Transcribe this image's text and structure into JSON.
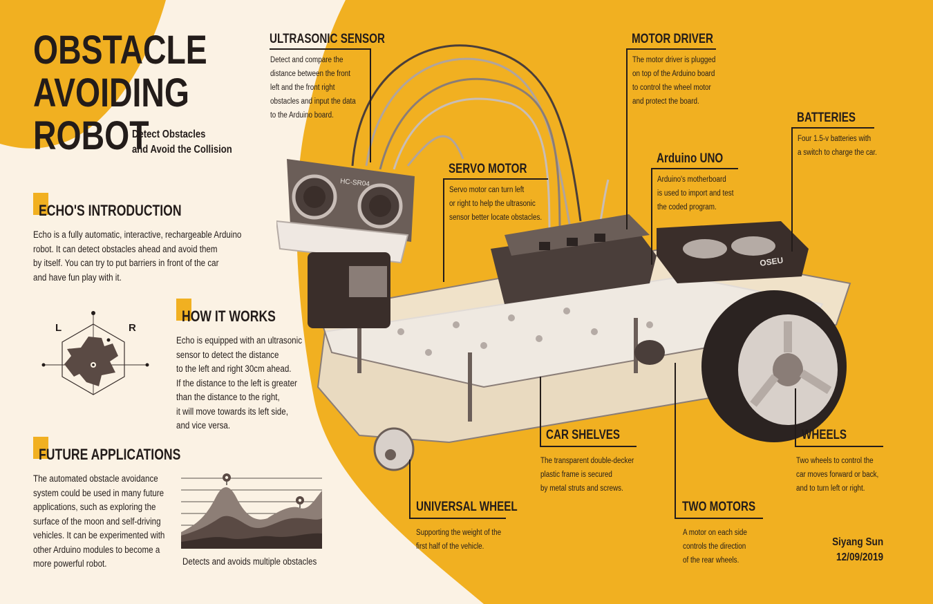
{
  "header": {
    "title_lines": [
      "OBSTACLE",
      "AVOIDING",
      "ROBOT"
    ],
    "subtitle_lines": [
      "Detect Obstacles",
      "and Avoid the Collision"
    ]
  },
  "intro": {
    "heading": "ECHO'S INTRODUCTION",
    "lines": [
      "Echo is a fully automatic, interactive, rechargeable Arduino",
      "robot. It can detect obstacles ahead and avoid them",
      "by itself. You can try to put barriers in front of the car",
      "and have fun play with it."
    ]
  },
  "sensor_diagram": {
    "left_label": "L",
    "right_label": "R"
  },
  "how": {
    "heading": "HOW IT WORKS",
    "lines": [
      "Echo is equipped with an ultrasonic",
      "sensor to detect the distance",
      "to the left and right 30cm ahead.",
      "If the distance to the left is greater",
      "than the distance to the right,",
      "it will move towards its left side,",
      "and vice versa."
    ]
  },
  "future": {
    "heading": "FUTURE APPLICATIONS",
    "lines": [
      "The automated obstacle avoidance",
      "system could be used in many future",
      "applications, such as exploring the",
      "surface of the moon and self-driving",
      "vehicles. It can be experimented with",
      "other Arduino modules to become a",
      "more powerful robot."
    ]
  },
  "graph": {
    "caption": "Detects and avoids multiple obstacles"
  },
  "callouts": {
    "ultrasonic": {
      "heading": "ULTRASONIC SENSOR",
      "lines": [
        "Detect and compare the",
        "distance between the front",
        "left and the front right",
        "obstacles and input the data",
        "to the Arduino board."
      ]
    },
    "motor_driver": {
      "heading": "MOTOR DRIVER",
      "lines": [
        "The motor driver is plugged",
        "on top of the Arduino board",
        "to control the wheel motor",
        "and protect the board."
      ]
    },
    "batteries": {
      "heading": "BATTERIES",
      "lines": [
        "Four 1.5-v batteries with",
        "a switch to charge the car."
      ]
    },
    "servo": {
      "heading": "SERVO MOTOR",
      "lines": [
        "Servo motor can turn left",
        "or right to help the ultrasonic",
        "sensor better locate obstacles."
      ]
    },
    "arduino": {
      "heading": "Arduino UNO",
      "lines": [
        "Arduino's motherboard",
        "is used to import and test",
        "the coded program."
      ]
    },
    "shelves": {
      "heading": "CAR SHELVES",
      "lines": [
        "The transparent double-decker",
        "plastic frame is secured",
        "by metal struts and screws."
      ]
    },
    "wheels": {
      "heading": "WHEELS",
      "lines": [
        "Two wheels to control the",
        "car moves forward or back,",
        "and to turn left or right."
      ]
    },
    "universal": {
      "heading": "UNIVERSAL WHEEL",
      "lines": [
        "Supporting the weight of the",
        "first half of the vehicle."
      ]
    },
    "two_motors": {
      "heading": "TWO MOTORS",
      "lines": [
        "A motor on each side",
        "controls the direction",
        "of the rear wheels."
      ]
    }
  },
  "robot_labels": {
    "sensor_model": "HC-SR04",
    "battery_label": "OSEU"
  },
  "credit": {
    "author": "Siyang Sun",
    "date": "12/09/2019"
  },
  "colors": {
    "background": "#fbf2e4",
    "accent": "#f1b021",
    "ink": "#231c1a",
    "photo_tone": "#7a6a62"
  }
}
